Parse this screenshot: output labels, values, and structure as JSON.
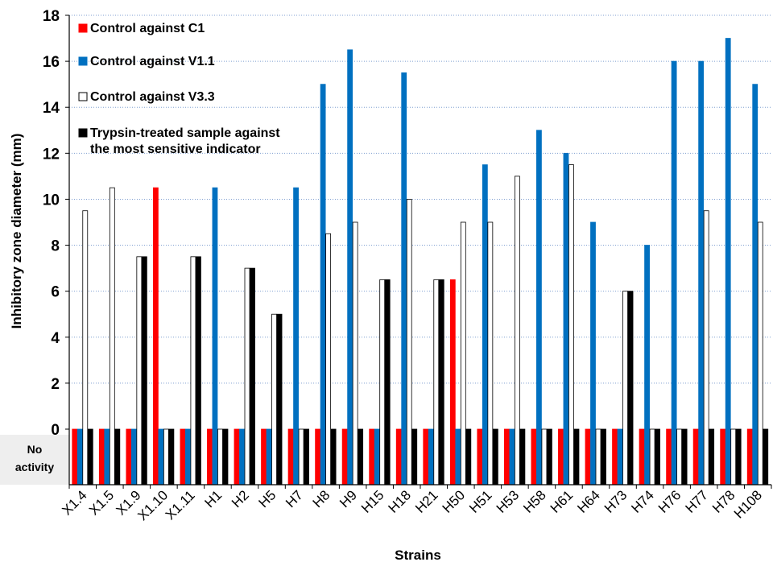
{
  "chart_data": {
    "type": "bar",
    "title": "",
    "xlabel": "Strains",
    "ylabel": "Inhibitory zone diameter (mm)",
    "ylim": [
      0,
      18
    ],
    "yticks": [
      "18",
      "16",
      "14",
      "12",
      "10",
      "8",
      "6",
      "4",
      "2",
      "0"
    ],
    "grid": "horizontal dotted",
    "legend_position": "top-left",
    "no_activity_label": [
      "No",
      "activity"
    ],
    "categories": [
      "X1.4",
      "X1.5",
      "X1.9",
      "X1.10",
      "X1.11",
      "H1",
      "H2",
      "H5",
      "H7",
      "H8",
      "H9",
      "H15",
      "H18",
      "H21",
      "H50",
      "H51",
      "H53",
      "H58",
      "H61",
      "H64",
      "H73",
      "H74",
      "H76",
      "H77",
      "H78",
      "H108"
    ],
    "series": [
      {
        "name": "Control against C1",
        "color": "#ff0000",
        "stroke": "#ff0000",
        "values": [
          0,
          0,
          0,
          10.5,
          0,
          0,
          0,
          0,
          0,
          0,
          0,
          0,
          0,
          0,
          6.5,
          0,
          0,
          0,
          0,
          0,
          0,
          0,
          0,
          0,
          0,
          0
        ]
      },
      {
        "name": "Control against V1.1",
        "color": "#0070c0",
        "stroke": "#0070c0",
        "values": [
          0,
          0,
          0,
          0,
          0,
          10.5,
          0,
          0,
          10.5,
          15,
          16.5,
          0,
          15.5,
          0,
          0,
          11.5,
          0,
          13,
          12,
          9,
          0,
          8,
          16,
          16,
          17,
          15
        ]
      },
      {
        "name": "Control against V3.3",
        "color": "#ffffff",
        "stroke": "#000000",
        "values": [
          9.5,
          10.5,
          7.5,
          0,
          7.5,
          0,
          7,
          5,
          0,
          8.5,
          9,
          6.5,
          10,
          6.5,
          9,
          9,
          11,
          0,
          11.5,
          0,
          6,
          0,
          0,
          9.5,
          0,
          9
        ]
      },
      {
        "name": "Trypsin-treated sample against the most sensitive indicator",
        "legend_lines": [
          "Trypsin-treated sample against",
          "the most sensitive indicator"
        ],
        "color": "#000000",
        "stroke": "#000000",
        "values": [
          0,
          0,
          7.5,
          0,
          7.5,
          0,
          7,
          5,
          0,
          0,
          0,
          6.5,
          0,
          6.5,
          0,
          0,
          0,
          0,
          0,
          0,
          6,
          0,
          0,
          0,
          0,
          0
        ]
      }
    ]
  }
}
